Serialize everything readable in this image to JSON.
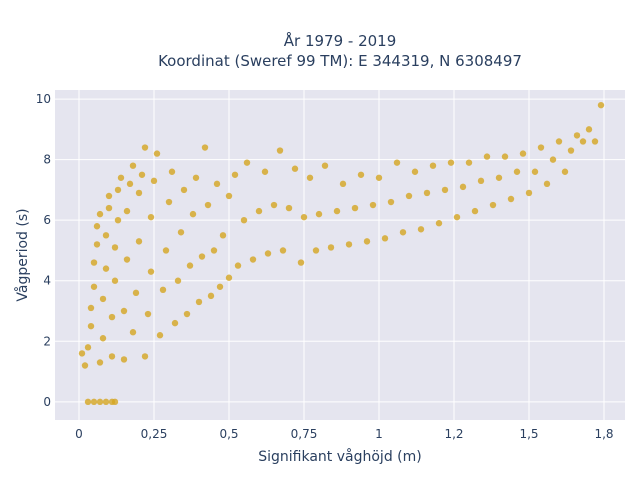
{
  "chart_data": {
    "type": "scatter",
    "title": "År 1979 - 2019",
    "subtitle": "Koordinat (Sweref 99 TM): E 344319, N 6308497",
    "xlabel": "Signifikant våghöjd (m)",
    "ylabel": "Vågperiod (s)",
    "xlim": [
      -0.08,
      1.82
    ],
    "ylim": [
      -0.6,
      10.3
    ],
    "x_ticks": [
      0,
      0.25,
      0.5,
      0.75,
      1,
      1.25,
      1.5,
      1.75
    ],
    "x_tick_labels": [
      "0",
      "0,25",
      "0,5",
      "0,75",
      "1",
      "1,2",
      "1,5",
      "1,8"
    ],
    "y_ticks": [
      0,
      2,
      4,
      6,
      8,
      10
    ],
    "y_tick_labels": [
      "0",
      "2",
      "4",
      "6",
      "8",
      "10"
    ],
    "grid": true,
    "legend": "none",
    "marker_color": "#d4a520",
    "background_color": "#e5e5ef",
    "description": "Dense cloud of wave height vs wave period observations",
    "series": [
      {
        "points": [
          [
            0.03,
            0
          ],
          [
            0.05,
            0
          ],
          [
            0.07,
            0
          ],
          [
            0.09,
            0
          ],
          [
            0.11,
            0
          ],
          [
            0.12,
            0
          ],
          [
            0.01,
            1.6
          ],
          [
            0.02,
            1.2
          ],
          [
            0.03,
            1.8
          ],
          [
            0.04,
            2.5
          ],
          [
            0.04,
            3.1
          ],
          [
            0.05,
            3.8
          ],
          [
            0.05,
            4.6
          ],
          [
            0.06,
            5.2
          ],
          [
            0.06,
            5.8
          ],
          [
            0.07,
            6.2
          ],
          [
            0.07,
            1.3
          ],
          [
            0.08,
            2.1
          ],
          [
            0.08,
            3.4
          ],
          [
            0.09,
            4.4
          ],
          [
            0.09,
            5.5
          ],
          [
            0.1,
            6.4
          ],
          [
            0.1,
            6.8
          ],
          [
            0.11,
            1.5
          ],
          [
            0.11,
            2.8
          ],
          [
            0.12,
            4.0
          ],
          [
            0.12,
            5.1
          ],
          [
            0.13,
            6.0
          ],
          [
            0.13,
            7.0
          ],
          [
            0.14,
            7.4
          ],
          [
            0.15,
            1.4
          ],
          [
            0.15,
            3.0
          ],
          [
            0.16,
            4.7
          ],
          [
            0.16,
            6.3
          ],
          [
            0.17,
            7.2
          ],
          [
            0.18,
            7.8
          ],
          [
            0.18,
            2.3
          ],
          [
            0.19,
            3.6
          ],
          [
            0.2,
            5.3
          ],
          [
            0.2,
            6.9
          ],
          [
            0.21,
            7.5
          ],
          [
            0.22,
            8.4
          ],
          [
            0.22,
            1.5
          ],
          [
            0.23,
            2.9
          ],
          [
            0.24,
            4.3
          ],
          [
            0.24,
            6.1
          ],
          [
            0.25,
            7.3
          ],
          [
            0.26,
            8.2
          ],
          [
            0.27,
            2.2
          ],
          [
            0.28,
            3.7
          ],
          [
            0.29,
            5.0
          ],
          [
            0.3,
            6.6
          ],
          [
            0.31,
            7.6
          ],
          [
            0.32,
            2.6
          ],
          [
            0.33,
            4.0
          ],
          [
            0.34,
            5.6
          ],
          [
            0.35,
            7.0
          ],
          [
            0.36,
            2.9
          ],
          [
            0.37,
            4.5
          ],
          [
            0.38,
            6.2
          ],
          [
            0.39,
            7.4
          ],
          [
            0.4,
            3.3
          ],
          [
            0.41,
            4.8
          ],
          [
            0.42,
            8.4
          ],
          [
            0.43,
            6.5
          ],
          [
            0.44,
            3.5
          ],
          [
            0.45,
            5.0
          ],
          [
            0.46,
            7.2
          ],
          [
            0.47,
            3.8
          ],
          [
            0.48,
            5.5
          ],
          [
            0.5,
            6.8
          ],
          [
            0.5,
            4.1
          ],
          [
            0.52,
            7.5
          ],
          [
            0.53,
            4.5
          ],
          [
            0.55,
            6.0
          ],
          [
            0.56,
            7.9
          ],
          [
            0.58,
            4.7
          ],
          [
            0.6,
            6.3
          ],
          [
            0.62,
            7.6
          ],
          [
            0.63,
            4.9
          ],
          [
            0.65,
            6.5
          ],
          [
            0.67,
            8.3
          ],
          [
            0.68,
            5.0
          ],
          [
            0.7,
            6.4
          ],
          [
            0.72,
            7.7
          ],
          [
            0.74,
            4.6
          ],
          [
            0.75,
            6.1
          ],
          [
            0.77,
            7.4
          ],
          [
            0.79,
            5.0
          ],
          [
            0.8,
            6.2
          ],
          [
            0.82,
            7.8
          ],
          [
            0.84,
            5.1
          ],
          [
            0.86,
            6.3
          ],
          [
            0.88,
            7.2
          ],
          [
            0.9,
            5.2
          ],
          [
            0.92,
            6.4
          ],
          [
            0.94,
            7.5
          ],
          [
            0.96,
            5.3
          ],
          [
            0.98,
            6.5
          ],
          [
            1.0,
            7.4
          ],
          [
            1.02,
            5.4
          ],
          [
            1.04,
            6.6
          ],
          [
            1.06,
            7.9
          ],
          [
            1.08,
            5.6
          ],
          [
            1.1,
            6.8
          ],
          [
            1.12,
            7.6
          ],
          [
            1.14,
            5.7
          ],
          [
            1.16,
            6.9
          ],
          [
            1.18,
            7.8
          ],
          [
            1.2,
            5.9
          ],
          [
            1.22,
            7.0
          ],
          [
            1.24,
            7.9
          ],
          [
            1.26,
            6.1
          ],
          [
            1.28,
            7.1
          ],
          [
            1.3,
            7.9
          ],
          [
            1.32,
            6.3
          ],
          [
            1.34,
            7.3
          ],
          [
            1.36,
            8.1
          ],
          [
            1.38,
            6.5
          ],
          [
            1.4,
            7.4
          ],
          [
            1.42,
            8.1
          ],
          [
            1.44,
            6.7
          ],
          [
            1.46,
            7.6
          ],
          [
            1.48,
            8.2
          ],
          [
            1.5,
            6.9
          ],
          [
            1.52,
            7.6
          ],
          [
            1.54,
            8.4
          ],
          [
            1.56,
            7.2
          ],
          [
            1.58,
            8.0
          ],
          [
            1.6,
            8.6
          ],
          [
            1.62,
            7.6
          ],
          [
            1.64,
            8.3
          ],
          [
            1.66,
            8.8
          ],
          [
            1.68,
            8.6
          ],
          [
            1.7,
            9.0
          ],
          [
            1.72,
            8.6
          ],
          [
            1.74,
            9.8
          ]
        ]
      }
    ]
  }
}
